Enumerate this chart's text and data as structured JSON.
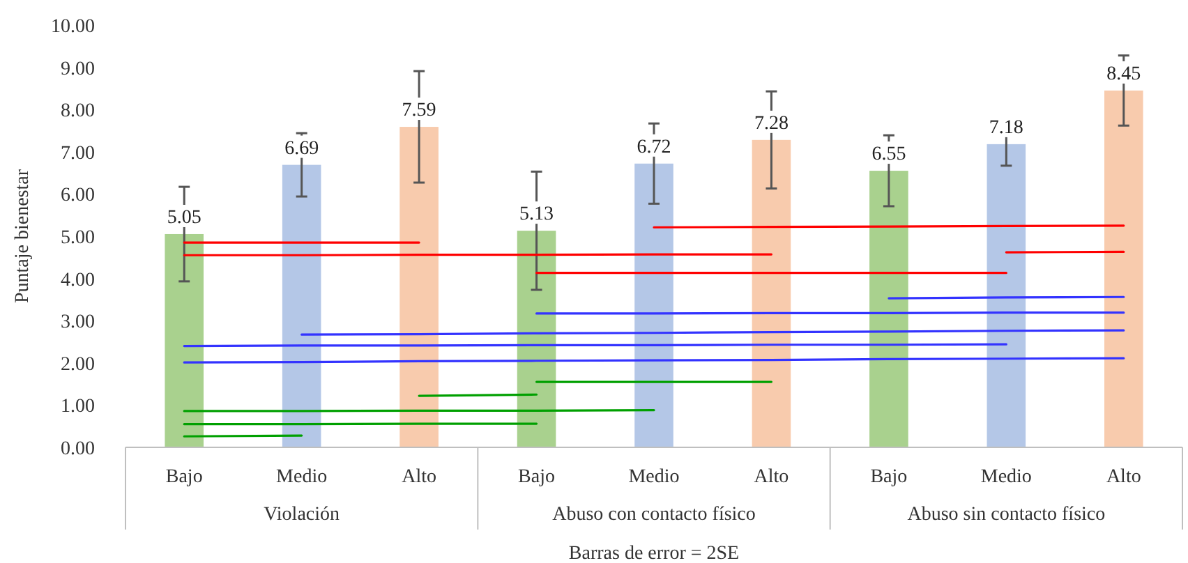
{
  "chart_data": {
    "type": "bar",
    "ylabel": "Puntaje bienestar",
    "categories": [
      "Bajo",
      "Medio",
      "Alto",
      "Bajo",
      "Medio",
      "Alto",
      "Bajo",
      "Medio",
      "Alto"
    ],
    "annotations": [
      "Violación",
      "Abuso con contacto físico",
      "Abuso sin contacto físico",
      "Barras de error = 2SE"
    ],
    "ylim": [
      0,
      10
    ],
    "yticks": [
      {
        "value": 0,
        "label": "0.00"
      },
      {
        "value": 1,
        "label": "1.00"
      },
      {
        "value": 2,
        "label": "2.00"
      },
      {
        "value": 3,
        "label": "3.00"
      },
      {
        "value": 4,
        "label": "4.00"
      },
      {
        "value": 5,
        "label": "5.00"
      },
      {
        "value": 6,
        "label": "6.00"
      },
      {
        "value": 7,
        "label": "7.00"
      },
      {
        "value": 8,
        "label": "8.00"
      },
      {
        "value": 9,
        "label": "9.00"
      },
      {
        "value": 10,
        "label": "10.00"
      }
    ],
    "series": [
      {
        "values": [
          5.05,
          6.69,
          7.59,
          5.13,
          6.72,
          7.28,
          6.55,
          7.18,
          8.45
        ],
        "colors": [
          "#a9d18e",
          "#b4c7e7",
          "#f8cbad",
          "#a9d18e",
          "#b4c7e7",
          "#f8cbad",
          "#a9d18e",
          "#b4c7e7",
          "#f8cbad"
        ],
        "errors": [
          1.12,
          0.75,
          1.32,
          1.4,
          0.95,
          1.15,
          0.84,
          0.51,
          0.83
        ],
        "value_labels": [
          "5.05",
          "6.69",
          "7.59",
          "5.13",
          "6.72",
          "7.28",
          "6.55",
          "7.18",
          "8.45"
        ]
      },
      {
        "type": "line",
        "color": "#ff0000",
        "values": [
          4.85,
          4.85,
          4.85,
          null,
          null,
          null,
          null,
          null,
          null
        ]
      },
      {
        "type": "line",
        "color": "#ff0000",
        "values": [
          4.55,
          4.55,
          4.56,
          4.56,
          4.57,
          4.57,
          null,
          null,
          null
        ]
      },
      {
        "type": "line",
        "color": "#ff0000",
        "values": [
          null,
          null,
          null,
          4.13,
          4.13,
          4.13,
          4.13,
          4.13,
          null
        ]
      },
      {
        "type": "line",
        "color": "#ff0000",
        "values": [
          null,
          null,
          null,
          null,
          5.21,
          5.22,
          5.23,
          5.24,
          5.25
        ]
      },
      {
        "type": "line",
        "color": "#ff0000",
        "values": [
          null,
          null,
          null,
          null,
          null,
          null,
          null,
          4.62,
          4.63
        ]
      },
      {
        "type": "line",
        "color": "#3333ff",
        "values": [
          null,
          null,
          null,
          null,
          null,
          null,
          3.53,
          3.55,
          3.56
        ]
      },
      {
        "type": "line",
        "color": "#3333ff",
        "values": [
          null,
          null,
          null,
          3.17,
          3.17,
          3.18,
          3.18,
          3.19,
          3.19
        ]
      },
      {
        "type": "line",
        "color": "#3333ff",
        "values": [
          null,
          2.67,
          2.68,
          2.7,
          2.71,
          2.73,
          2.74,
          2.76,
          2.77
        ]
      },
      {
        "type": "line",
        "color": "#3333ff",
        "values": [
          2.4,
          2.41,
          2.41,
          2.42,
          2.42,
          2.43,
          2.43,
          2.44,
          null
        ]
      },
      {
        "type": "line",
        "color": "#3333ff",
        "values": [
          2.01,
          2.02,
          2.04,
          2.05,
          2.06,
          2.07,
          2.09,
          2.1,
          2.11
        ]
      },
      {
        "type": "line",
        "color": "#00a000",
        "values": [
          0.26,
          0.28,
          null,
          null,
          null,
          null,
          null,
          null,
          null
        ]
      },
      {
        "type": "line",
        "color": "#00a000",
        "values": [
          0.55,
          0.55,
          0.56,
          0.56,
          null,
          null,
          null,
          null,
          null
        ]
      },
      {
        "type": "line",
        "color": "#00a000",
        "values": [
          0.86,
          0.86,
          0.87,
          0.87,
          0.88,
          null,
          null,
          null,
          null
        ]
      },
      {
        "type": "line",
        "color": "#00a000",
        "values": [
          null,
          null,
          1.22,
          1.25,
          null,
          null,
          null,
          null,
          null
        ]
      },
      {
        "type": "line",
        "color": "#00a000",
        "values": [
          null,
          null,
          null,
          1.55,
          1.55,
          1.55,
          null,
          null,
          null
        ]
      }
    ]
  }
}
